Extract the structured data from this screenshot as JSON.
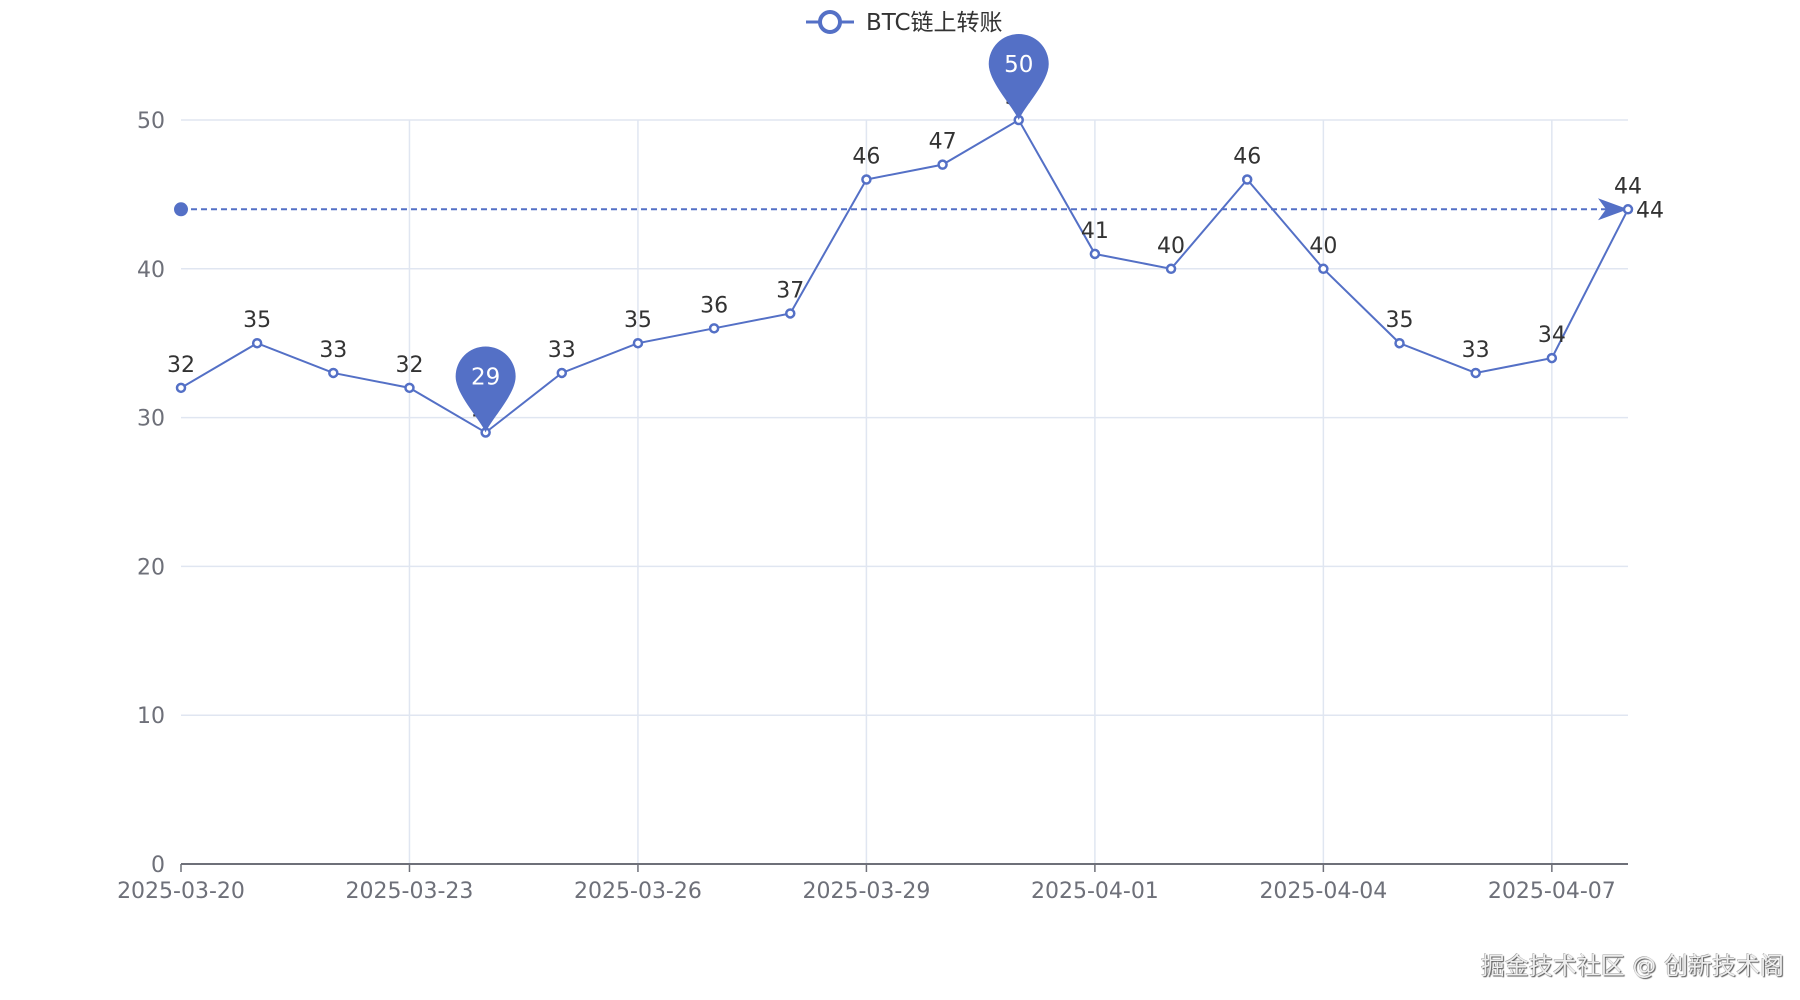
{
  "chart_data": {
    "type": "line",
    "title": "",
    "legend": [
      "BTC链上转账"
    ],
    "legend_position": "top-center",
    "x": [
      "2025-03-20",
      "2025-03-21",
      "2025-03-22",
      "2025-03-23",
      "2025-03-24",
      "2025-03-25",
      "2025-03-26",
      "2025-03-27",
      "2025-03-28",
      "2025-03-29",
      "2025-03-30",
      "2025-03-31",
      "2025-04-01",
      "2025-04-02",
      "2025-04-03",
      "2025-04-04",
      "2025-04-05",
      "2025-04-06",
      "2025-04-07",
      "2025-04-08"
    ],
    "x_tick_labels": [
      "2025-03-20",
      "2025-03-23",
      "2025-03-26",
      "2025-03-29",
      "2025-04-01",
      "2025-04-04",
      "2025-04-07"
    ],
    "series": [
      {
        "name": "BTC链上转账",
        "values": [
          32,
          35,
          33,
          32,
          29,
          33,
          35,
          36,
          37,
          46,
          47,
          50,
          41,
          40,
          46,
          40,
          35,
          33,
          34,
          44
        ]
      }
    ],
    "ylim": [
      0,
      50
    ],
    "y_ticks": [
      0,
      10,
      20,
      30,
      40,
      50
    ],
    "grid": true,
    "mark_points": [
      {
        "label": "50",
        "value": 50,
        "index": 11
      },
      {
        "label": "29",
        "value": 29,
        "index": 4
      }
    ],
    "mark_line": {
      "value": 44,
      "label": "44"
    },
    "color": "#5470c6"
  },
  "watermark": "掘金技术社区 @ 创新技术阁"
}
